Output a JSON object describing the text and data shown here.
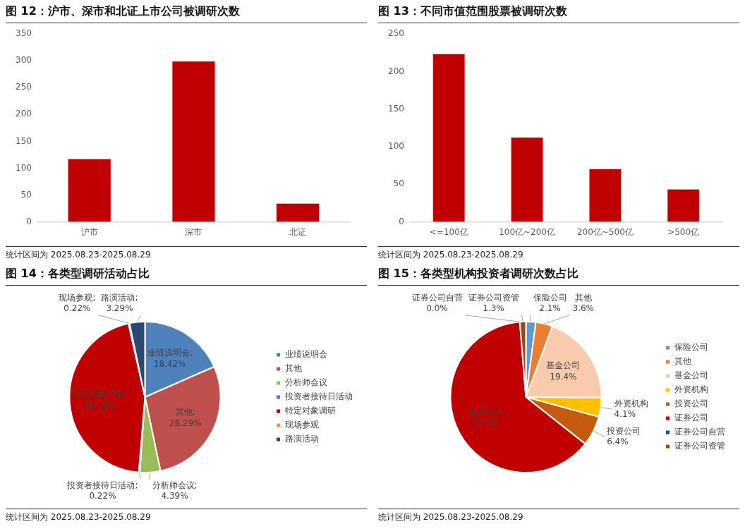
{
  "chart_data": [
    {
      "type": "bar",
      "title": "图 12：沪市、深市和北证上市公司被调研次数",
      "categories": [
        "沪市",
        "深市",
        "北证"
      ],
      "values": [
        118,
        300,
        35
      ],
      "color": "#c00000",
      "ylim": [
        0,
        350
      ],
      "yticks": [
        0,
        50,
        100,
        150,
        200,
        250,
        300,
        350
      ],
      "grid": false,
      "legend": false,
      "annotations": [
        "统计区间为 2025.08.23-2025.08.29"
      ]
    },
    {
      "type": "bar",
      "title": "图 13：不同市值范围股票被调研次数",
      "categories": [
        "<=100亿",
        "100亿~200亿",
        "200亿~500亿",
        ">500亿"
      ],
      "values": [
        224,
        113,
        71,
        44
      ],
      "color": "#c00000",
      "ylim": [
        0,
        250
      ],
      "yticks": [
        0,
        50,
        100,
        150,
        200,
        250
      ],
      "grid": false,
      "legend": false,
      "annotations": [
        "统计区间为 2025.08.23-2025.08.29"
      ]
    },
    {
      "type": "pie",
      "title": "图 14：各类型调研活动占比",
      "categories": [
        "业绩说明会",
        "其他",
        "分析师会议",
        "投资者接待日活动",
        "特定对象调研",
        "现场参观",
        "路演活动"
      ],
      "values": [
        18.42,
        28.29,
        4.39,
        0.22,
        45.18,
        0.22,
        3.29
      ],
      "colors": [
        "#4f81bd",
        "#c0504d",
        "#9bbb59",
        "#8064a2",
        "#c00000",
        "#f79646",
        "#2c4770"
      ],
      "value_labels": [
        "业绩说明会; 18.42%",
        "其他; 28.29%",
        "分析师会议; 4.39%",
        "投资者接待日活动; 0.22%",
        "特定对象调研; 45.18%",
        "现场参观; 0.22%",
        "路演活动; 3.29%"
      ],
      "legend": "right",
      "annotations": [
        "统计区间为 2025.08.23-2025.08.29"
      ]
    },
    {
      "type": "pie",
      "title": "图 15：各类型机构投资者调研次数占比",
      "categories": [
        "保险公司",
        "其他",
        "基金公司",
        "外资机构",
        "投资公司",
        "证券公司",
        "证券公司自营",
        "证券公司资管"
      ],
      "values": [
        2.1,
        3.6,
        19.4,
        4.1,
        6.4,
        63.0,
        0.0,
        1.3
      ],
      "colors": [
        "#5b9bd5",
        "#ed7d31",
        "#f8cbad",
        "#ffc000",
        "#c55a11",
        "#c00000",
        "#264478",
        "#9e480e"
      ],
      "value_labels": [
        "保险公司 2.1%",
        "其他 3.6%",
        "基金公司 19.4%",
        "外资机构 4.1%",
        "投资公司 6.4%",
        "证券公司 63.0%",
        "证券公司自营 0.0%",
        "证券公司资管 1.3%"
      ],
      "legend": "right",
      "annotations": [
        "统计区间为 2025.08.23-2025.08.29"
      ]
    }
  ]
}
